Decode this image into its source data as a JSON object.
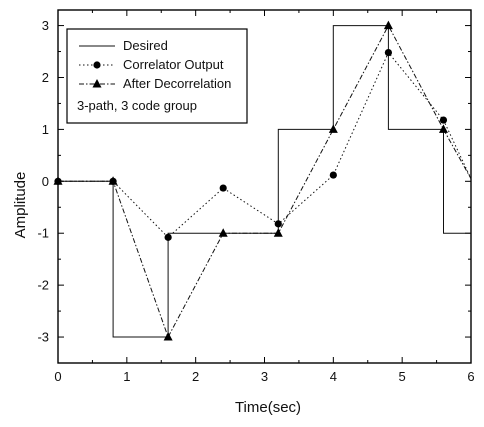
{
  "chart_data": {
    "type": "line",
    "xlabel": "Time(sec)",
    "ylabel": "Amplitude",
    "xlim": [
      0,
      6
    ],
    "ylim": [
      -3.5,
      3.3
    ],
    "xticks": [
      "0",
      "1",
      "2",
      "3",
      "4",
      "5",
      "6"
    ],
    "yticks": [
      "-3",
      "-2",
      "-1",
      "0",
      "1",
      "2",
      "3"
    ],
    "grid": false,
    "legend_position": "top-left",
    "legend_note": "3-path, 3 code group",
    "series": [
      {
        "name": "Desired",
        "style": "solid-step",
        "x": [
          0,
          0.8,
          0.8,
          1.6,
          1.6,
          3.2,
          3.2,
          4.0,
          4.0,
          4.8,
          4.8,
          5.6,
          5.6,
          6.0
        ],
        "y": [
          0,
          0,
          -3,
          -3,
          -1,
          -1,
          1,
          1,
          3,
          3,
          1,
          1,
          -1,
          -1
        ]
      },
      {
        "name": "Correlator Output",
        "style": "dotted-circle",
        "x": [
          0,
          0.8,
          1.6,
          2.4,
          3.2,
          4.0,
          4.8,
          5.6,
          6.0
        ],
        "y": [
          0,
          0,
          -1.08,
          -0.13,
          -0.82,
          0.12,
          2.48,
          1.18,
          0.05
        ]
      },
      {
        "name": "After Decorrelation",
        "style": "dashdot-triangle",
        "x": [
          0,
          0.8,
          1.6,
          2.4,
          3.2,
          4.0,
          4.8,
          5.6,
          6.0
        ],
        "y": [
          0,
          0,
          -3,
          -1,
          -1,
          1,
          3,
          1,
          0.05
        ]
      }
    ]
  }
}
